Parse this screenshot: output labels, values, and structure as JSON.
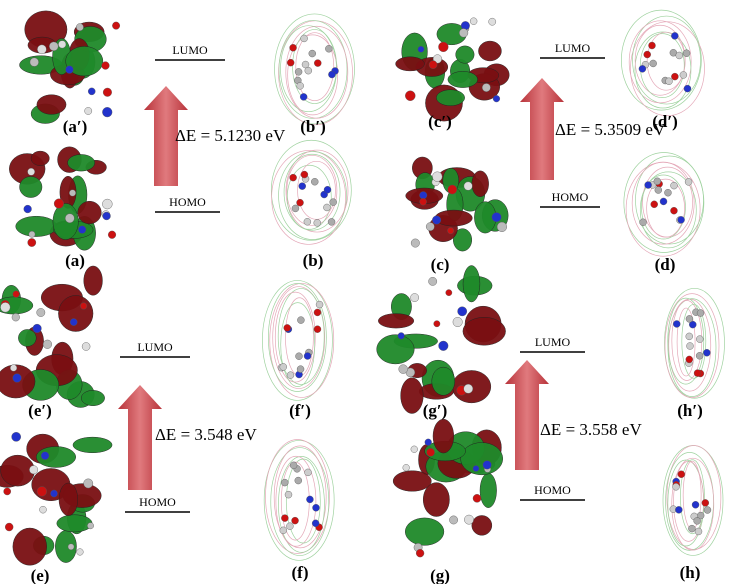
{
  "panels": [
    {
      "lumo_orbital_label": "(a′)",
      "homo_orbital_label": "(a)",
      "lumo_map_label": "(b′)",
      "homo_map_label": "(b)",
      "lumo": "LUMO",
      "homo": "HOMO",
      "energy_gap": "ΔE = 5.1230 eV"
    },
    {
      "lumo_orbital_label": "(c′)",
      "homo_orbital_label": "(c)",
      "lumo_map_label": "(d′)",
      "homo_map_label": "(d)",
      "lumo": "LUMO",
      "homo": "HOMO",
      "energy_gap": "ΔE = 5.3509 eV"
    },
    {
      "lumo_orbital_label": "(e′)",
      "homo_orbital_label": "(e)",
      "lumo_map_label": "(f′)",
      "homo_map_label": "(f)",
      "lumo": "LUMO",
      "homo": "HOMO",
      "energy_gap": "ΔE = 3.548 eV"
    },
    {
      "lumo_orbital_label": "(g′)",
      "homo_orbital_label": "(g)",
      "lumo_map_label": "(h′)",
      "homo_map_label": "(h)",
      "lumo": "LUMO",
      "homo": "HOMO",
      "energy_gap": "ΔE = 3.558 eV"
    }
  ]
}
